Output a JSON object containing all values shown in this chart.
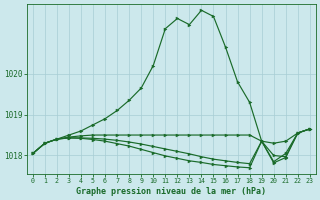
{
  "title": "Graphe pression niveau de la mer (hPa)",
  "background_color": "#cce8ec",
  "line_color": "#1a6b2a",
  "grid_color": "#a8cdd4",
  "ylim": [
    1017.55,
    1021.7
  ],
  "xlim": [
    -0.5,
    23.5
  ],
  "yticks": [
    1018,
    1019,
    1020
  ],
  "xticks": [
    0,
    1,
    2,
    3,
    4,
    5,
    6,
    7,
    8,
    9,
    10,
    11,
    12,
    13,
    14,
    15,
    16,
    17,
    18,
    19,
    20,
    21,
    22,
    23
  ],
  "series": [
    [
      1018.05,
      1018.3,
      1018.4,
      1018.5,
      1018.6,
      1018.75,
      1018.9,
      1019.1,
      1019.35,
      1019.65,
      1020.2,
      1021.1,
      1021.35,
      1021.2,
      1021.55,
      1021.4,
      1020.65,
      1019.8,
      1019.3,
      1018.35,
      1017.85,
      1018.05,
      1018.55,
      1018.65
    ],
    [
      1018.05,
      1018.3,
      1018.4,
      1018.45,
      1018.48,
      1018.5,
      1018.5,
      1018.5,
      1018.5,
      1018.5,
      1018.5,
      1018.5,
      1018.5,
      1018.5,
      1018.5,
      1018.5,
      1018.5,
      1018.5,
      1018.5,
      1018.35,
      1018.3,
      1018.35,
      1018.55,
      1018.65
    ],
    [
      1018.05,
      1018.3,
      1018.4,
      1018.43,
      1018.43,
      1018.42,
      1018.4,
      1018.37,
      1018.33,
      1018.28,
      1018.22,
      1018.16,
      1018.1,
      1018.04,
      1017.97,
      1017.91,
      1017.87,
      1017.83,
      1017.8,
      1018.35,
      1018.0,
      1017.97,
      1018.55,
      1018.65
    ],
    [
      1018.05,
      1018.3,
      1018.4,
      1018.43,
      1018.42,
      1018.39,
      1018.35,
      1018.29,
      1018.23,
      1018.15,
      1018.07,
      1017.99,
      1017.93,
      1017.87,
      1017.83,
      1017.78,
      1017.75,
      1017.72,
      1017.7,
      1018.35,
      1017.82,
      1017.95,
      1018.55,
      1018.65
    ]
  ]
}
